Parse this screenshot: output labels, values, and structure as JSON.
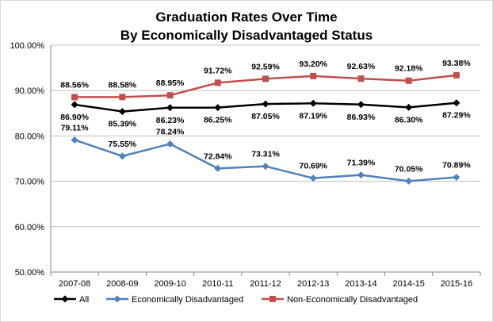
{
  "chart_data": {
    "type": "line",
    "title": "Graduation Rates Over Time",
    "subtitle": "By Economically Disadvantaged Status",
    "xlabel": "",
    "ylabel": "",
    "categories": [
      "2007-08",
      "2008-09",
      "2009-10",
      "2010-11",
      "2011-12",
      "2012-13",
      "2013-14",
      "2014-15",
      "2015-16"
    ],
    "ylim": [
      50,
      100
    ],
    "yticks": [
      "50.00%",
      "60.00%",
      "70.00%",
      "80.00%",
      "90.00%",
      "100.00%"
    ],
    "grid": "horizontal",
    "legend_position": "bottom",
    "series": [
      {
        "name": "All",
        "color": "#000000",
        "marker": "diamond",
        "values": [
          86.9,
          85.39,
          86.23,
          86.25,
          87.05,
          87.19,
          86.93,
          86.3,
          87.29
        ],
        "labels": [
          "86.90%",
          "85.39%",
          "86.23%",
          "86.25%",
          "87.05%",
          "87.19%",
          "86.93%",
          "86.30%",
          "87.29%"
        ]
      },
      {
        "name": "Economically Disadvantaged",
        "color": "#4f81bd",
        "marker": "diamond",
        "values": [
          79.11,
          75.55,
          78.24,
          72.84,
          73.31,
          70.69,
          71.39,
          70.05,
          70.89
        ],
        "labels": [
          "79.11%",
          "75.55%",
          "78.24%",
          "72.84%",
          "73.31%",
          "70.69%",
          "71.39%",
          "70.05%",
          "70.89%"
        ]
      },
      {
        "name": "Non-Economically Disadvantaged",
        "color": "#c0504d",
        "marker": "square",
        "values": [
          88.56,
          88.58,
          88.95,
          91.72,
          92.59,
          93.2,
          92.63,
          92.18,
          93.38
        ],
        "labels": [
          "88.56%",
          "88.58%",
          "88.95%",
          "91.72%",
          "92.59%",
          "93.20%",
          "92.63%",
          "92.18%",
          "93.38%"
        ]
      }
    ]
  }
}
